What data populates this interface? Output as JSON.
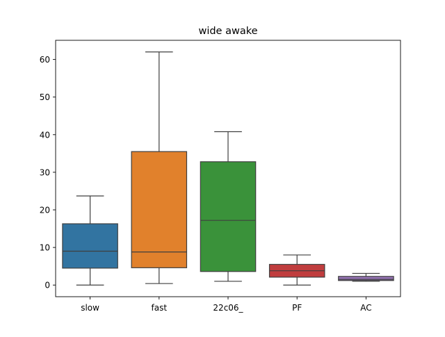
{
  "chart_data": {
    "type": "box",
    "title": "wide awake",
    "xlabel": "",
    "ylabel": "",
    "ylim": [
      -3.1,
      65.1
    ],
    "yticks": [
      0,
      10,
      20,
      30,
      40,
      50,
      60
    ],
    "ytick_labels": [
      "0",
      "10",
      "20",
      "30",
      "40",
      "50",
      "60"
    ],
    "grid": false,
    "categories": [
      "slow",
      "fast",
      "22c06_",
      "PF",
      "AC"
    ],
    "boxes": [
      {
        "category": "slow",
        "whisker_low": 0.0,
        "q1": 4.5,
        "median": 9.0,
        "q3": 16.3,
        "whisker_high": 23.7,
        "color": "#3274a1"
      },
      {
        "category": "fast",
        "whisker_low": 0.4,
        "q1": 4.6,
        "median": 8.8,
        "q3": 35.5,
        "whisker_high": 62.0,
        "color": "#e1812c"
      },
      {
        "category": "22c06_",
        "whisker_low": 1.0,
        "q1": 3.6,
        "median": 17.2,
        "q3": 32.8,
        "whisker_high": 40.8,
        "color": "#3a923a"
      },
      {
        "category": "PF",
        "whisker_low": 0.0,
        "q1": 2.1,
        "median": 3.8,
        "q3": 5.5,
        "whisker_high": 8.0,
        "color": "#c03d3e"
      },
      {
        "category": "AC",
        "whisker_low": 1.0,
        "q1": 1.2,
        "median": 1.5,
        "q3": 2.3,
        "whisker_high": 3.1,
        "color": "#9372b2"
      }
    ]
  }
}
